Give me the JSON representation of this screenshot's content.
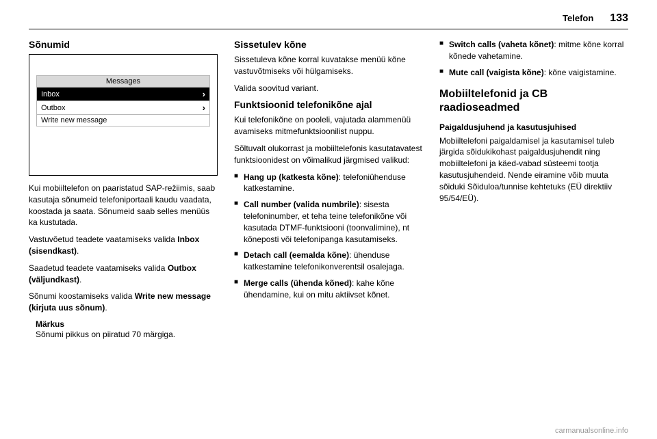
{
  "header": {
    "chapter": "Telefon",
    "pageNumber": "133"
  },
  "col1": {
    "sectionTitle": "Sõnumid",
    "screenshot": {
      "menuTitle": "Messages",
      "rows": [
        {
          "label": "Inbox",
          "chevron": true,
          "highlight": true
        },
        {
          "label": "Outbox",
          "chevron": true,
          "highlight": false
        },
        {
          "label": "Write new message",
          "chevron": false,
          "highlight": false
        }
      ]
    },
    "p1_pre": "Kui mobiiltelefon on paaristatud SAP-režiimis, saab kasutaja sõnumeid telefoniportaali kaudu vaadata, koostada ja saata. Sõnumeid saab selles menüüs ka kustutada.",
    "p2_pre": "Vastuvõetud teadete vaatamiseks valida ",
    "p2_bold": "Inbox (sisendkast)",
    "p2_post": ".",
    "p3_pre": "Saadetud teadete vaatamiseks valida ",
    "p3_bold": "Outbox (väljundkast)",
    "p3_post": ".",
    "p4_pre": "Sõnumi koostamiseks valida ",
    "p4_bold": "Write new message (kirjuta uus sõnum)",
    "p4_post": ".",
    "note": {
      "label": "Märkus",
      "text": "Sõnumi pikkus on piiratud 70 märgiga."
    }
  },
  "col2": {
    "sectionTitle1": "Sissetulev kõne",
    "p1": "Sissetuleva kõne korral kuvatakse menüü kõne vastuvõtmiseks või hülgamiseks.",
    "p2": "Valida soovitud variant.",
    "sectionTitle2": "Funktsioonid telefonikõne ajal",
    "p3": "Kui telefonikõne on pooleli, vajutada alammenüü avamiseks mitmefunktsioonilist nuppu.",
    "p4": "Sõltuvalt olukorrast ja mobiiltelefonis kasutatavatest funktsioonidest on võimalikud järgmised valikud:",
    "bullets": [
      {
        "bold": "Hang up (katkesta kõne)",
        "rest": ": telefoniühenduse katkestamine."
      },
      {
        "bold": "Call number (valida numbrile)",
        "rest": ": sisesta telefoninumber, et teha teine telefonikõne või kasutada DTMF-funktsiooni (toonvalimine), nt kõneposti või telefonipanga kasutamiseks."
      },
      {
        "bold": "Detach call (eemalda kõne)",
        "rest": ": ühenduse katkestamine telefonikonverentsil osalejaga."
      },
      {
        "bold": "Merge calls (ühenda kõned)",
        "rest": ": kahe kõne ühendamine, kui on mitu aktiivset kõnet."
      }
    ]
  },
  "col3": {
    "bullets": [
      {
        "bold": "Switch calls (vaheta kõnet)",
        "rest": ": mitme kõne korral kõnede vahetamine."
      },
      {
        "bold": "Mute call (vaigista kõne)",
        "rest": ": kõne vaigistamine."
      }
    ],
    "bigHeading": "Mobiiltelefonid ja CB raadioseadmed",
    "subTitle": "Paigaldusjuhend ja kasutusjuhised",
    "p1": "Mobiiltelefoni paigaldamisel ja kasutamisel tuleb järgida sõidukikohast paigaldusjuhendit ning mobiiltelefoni ja käed-vabad süsteemi tootja kasutusjuhendeid. Nende eiramine võib muuta sõiduki Sõiduloa/tunnise kehtetuks (EÜ direktiiv 95/54/EÜ)."
  },
  "watermark": "carmanualsonline.info"
}
